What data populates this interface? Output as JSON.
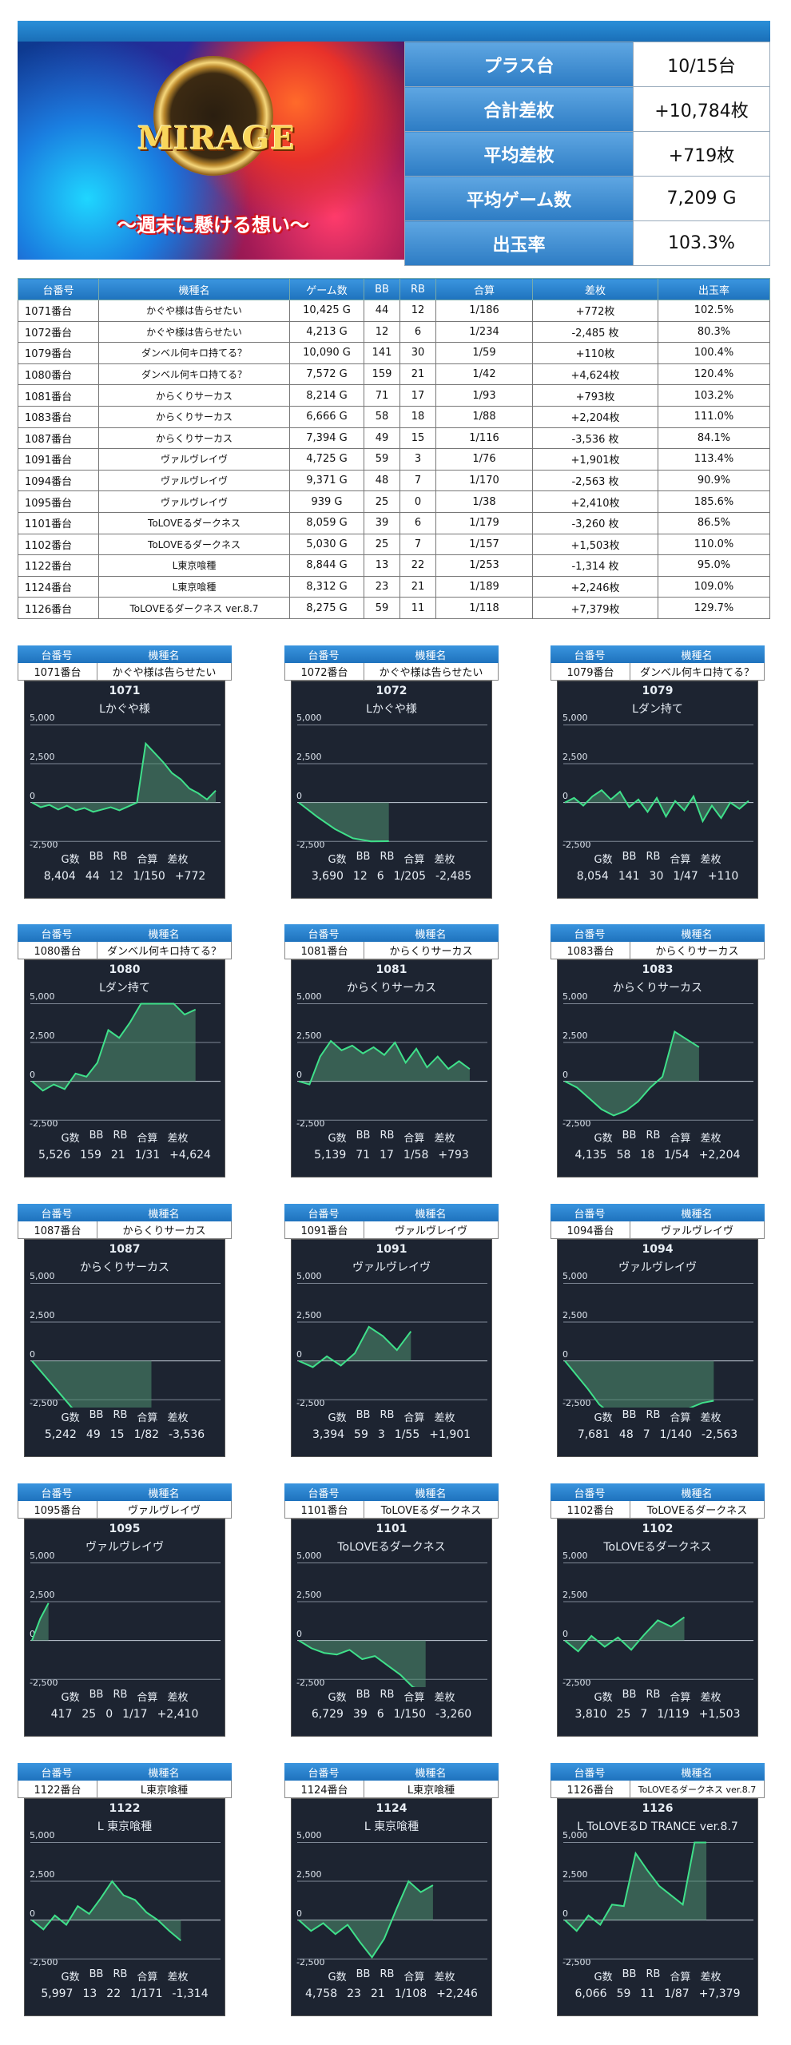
{
  "banner": {
    "logo": "MIRAGE",
    "tagline": "〜週末に懸ける想い〜"
  },
  "summary": [
    {
      "label": "プラス台",
      "value": "10/15台"
    },
    {
      "label": "合計差枚",
      "value": "+10,784枚"
    },
    {
      "label": "平均差枚",
      "value": "+719枚"
    },
    {
      "label": "平均ゲーム数",
      "value": "7,209 G"
    },
    {
      "label": "出玉率",
      "value": "103.3%"
    }
  ],
  "table": {
    "headers": [
      "台番号",
      "機種名",
      "ゲーム数",
      "BB",
      "RB",
      "合算",
      "差枚",
      "出玉率"
    ],
    "rows": [
      [
        "1071番台",
        "かぐや様は告らせたい",
        "10,425 G",
        "44",
        "12",
        "1/186",
        "+772枚",
        "102.5%"
      ],
      [
        "1072番台",
        "かぐや様は告らせたい",
        "4,213 G",
        "12",
        "6",
        "1/234",
        "-2,485 枚",
        "80.3%"
      ],
      [
        "1079番台",
        "ダンベル何キロ持てる？",
        "10,090 G",
        "141",
        "30",
        "1/59",
        "+110枚",
        "100.4%"
      ],
      [
        "1080番台",
        "ダンベル何キロ持てる？",
        "7,572 G",
        "159",
        "21",
        "1/42",
        "+4,624枚",
        "120.4%"
      ],
      [
        "1081番台",
        "からくりサーカス",
        "8,214 G",
        "71",
        "17",
        "1/93",
        "+793枚",
        "103.2%"
      ],
      [
        "1083番台",
        "からくりサーカス",
        "6,666 G",
        "58",
        "18",
        "1/88",
        "+2,204枚",
        "111.0%"
      ],
      [
        "1087番台",
        "からくりサーカス",
        "7,394 G",
        "49",
        "15",
        "1/116",
        "-3,536 枚",
        "84.1%"
      ],
      [
        "1091番台",
        "ヴァルヴレイヴ",
        "4,725 G",
        "59",
        "3",
        "1/76",
        "+1,901枚",
        "113.4%"
      ],
      [
        "1094番台",
        "ヴァルヴレイヴ",
        "9,371 G",
        "48",
        "7",
        "1/170",
        "-2,563 枚",
        "90.9%"
      ],
      [
        "1095番台",
        "ヴァルヴレイヴ",
        "939 G",
        "25",
        "0",
        "1/38",
        "+2,410枚",
        "185.6%"
      ],
      [
        "1101番台",
        "ToLOVEるダークネス",
        "8,059 G",
        "39",
        "6",
        "1/179",
        "-3,260 枚",
        "86.5%"
      ],
      [
        "1102番台",
        "ToLOVEるダークネス",
        "5,030 G",
        "25",
        "7",
        "1/157",
        "+1,503枚",
        "110.0%"
      ],
      [
        "1122番台",
        "L東京喰種",
        "8,844 G",
        "13",
        "22",
        "1/253",
        "-1,314 枚",
        "95.0%"
      ],
      [
        "1124番台",
        "L東京喰種",
        "8,312 G",
        "23",
        "21",
        "1/189",
        "+2,246枚",
        "109.0%"
      ],
      [
        "1126番台",
        "ToLOVEるダークネス ver.8.7",
        "8,275 G",
        "59",
        "11",
        "1/118",
        "+7,379枚",
        "129.7%"
      ]
    ]
  },
  "card_labels": {
    "no": "台番号",
    "name": "機種名",
    "g": "G数",
    "bb": "BB",
    "rb": "RB",
    "total": "合算",
    "diff": "差枚",
    "y5000": "5,000",
    "y2500": "2,500",
    "y0": "0",
    "ym2500": "-2,500"
  },
  "cards": [
    {
      "no": "1071番台",
      "name": "かぐや様は告らせたい",
      "gno": "1071",
      "gname": "Lかぐや様",
      "g": "8,404",
      "bb": "44",
      "rb": "12",
      "total": "1/150",
      "diff": "+772",
      "pts": [
        0,
        -300,
        -150,
        -450,
        -200,
        -500,
        -350,
        -600,
        -450,
        -300,
        -500,
        -250,
        0,
        3800,
        3200,
        2600,
        1900,
        1500,
        900,
        600,
        200,
        772
      ]
    },
    {
      "no": "1072番台",
      "name": "かぐや様は告らせたい",
      "gno": "1072",
      "gname": "Lかぐや様",
      "g": "3,690",
      "bb": "12",
      "rb": "6",
      "total": "1/205",
      "diff": "-2,485",
      "pts": [
        0,
        -900,
        -1700,
        -2300,
        -2500,
        -2485
      ]
    },
    {
      "no": "1079番台",
      "name": "ダンベル何キロ持てる？",
      "gno": "1079",
      "gname": "Lダン持て",
      "g": "8,054",
      "bb": "141",
      "rb": "30",
      "total": "1/47",
      "diff": "+110",
      "pts": [
        0,
        300,
        -200,
        400,
        800,
        200,
        700,
        -300,
        200,
        -600,
        300,
        -900,
        100,
        -500,
        400,
        -1200,
        -200,
        -1000,
        0,
        -400,
        110
      ]
    },
    {
      "no": "1080番台",
      "name": "ダンベル何キロ持てる？",
      "gno": "1080",
      "gname": "Lダン持て",
      "g": "5,526",
      "bb": "159",
      "rb": "21",
      "total": "1/31",
      "diff": "+4,624",
      "pts": [
        0,
        -600,
        -200,
        -500,
        500,
        300,
        1200,
        3300,
        2800,
        3800,
        5000,
        5000,
        5000,
        5000,
        4300,
        4624
      ]
    },
    {
      "no": "1081番台",
      "name": "からくりサーカス",
      "gno": "1081",
      "gname": "からくりサーカス",
      "g": "5,139",
      "bb": "71",
      "rb": "17",
      "total": "1/58",
      "diff": "+793",
      "pts": [
        0,
        -200,
        1600,
        2600,
        2000,
        2300,
        1800,
        2200,
        1700,
        2500,
        1200,
        2100,
        900,
        1600,
        800,
        1300,
        793
      ]
    },
    {
      "no": "1083番台",
      "name": "からくりサーカス",
      "gno": "1083",
      "gname": "からくりサーカス",
      "g": "4,135",
      "bb": "58",
      "rb": "18",
      "total": "1/54",
      "diff": "+2,204",
      "pts": [
        0,
        -400,
        -1100,
        -1800,
        -2200,
        -1900,
        -1300,
        -400,
        300,
        3200,
        2700,
        2204
      ]
    },
    {
      "no": "1087番台",
      "name": "からくりサーカス",
      "gno": "1087",
      "gname": "からくりサーカス",
      "g": "5,242",
      "bb": "49",
      "rb": "15",
      "total": "1/82",
      "diff": "-3,536",
      "pts": [
        0,
        -1000,
        -2000,
        -3000,
        -3536,
        -3536,
        -3536,
        -3536,
        -3536,
        -3536
      ]
    },
    {
      "no": "1091番台",
      "name": "ヴァルヴレイヴ",
      "gno": "1091",
      "gname": "ヴァルヴレイヴ",
      "g": "3,394",
      "bb": "59",
      "rb": "3",
      "total": "1/55",
      "diff": "+1,901",
      "pts": [
        0,
        -400,
        300,
        -300,
        500,
        2200,
        1600,
        700,
        1901
      ]
    },
    {
      "no": "1094番台",
      "name": "ヴァルヴレイヴ",
      "gno": "1094",
      "gname": "ヴァルヴレイヴ",
      "g": "7,681",
      "bb": "48",
      "rb": "7",
      "total": "1/140",
      "diff": "-2,563",
      "pts": [
        0,
        -900,
        -1800,
        -2800,
        -3400,
        -3400,
        -3200,
        -3500,
        -3600,
        -3400,
        -3300,
        -3000,
        -2700,
        -2563
      ]
    },
    {
      "no": "1095番台",
      "name": "ヴァルヴレイヴ",
      "gno": "1095",
      "gname": "ヴァルヴレイヴ",
      "g": "417",
      "bb": "25",
      "rb": "0",
      "total": "1/17",
      "diff": "+2,410",
      "pts": [
        0,
        1400,
        2410
      ]
    },
    {
      "no": "1101番台",
      "name": "ToLOVEるダークネス",
      "gno": "1101",
      "gname": "ToLOVEるダークネス",
      "g": "6,729",
      "bb": "39",
      "rb": "6",
      "total": "1/150",
      "diff": "-3,260",
      "pts": [
        0,
        -500,
        -800,
        -900,
        -600,
        -1200,
        -1000,
        -1600,
        -2200,
        -3000,
        -3260
      ]
    },
    {
      "no": "1102番台",
      "name": "ToLOVEるダークネス",
      "gno": "1102",
      "gname": "ToLOVEるダークネス",
      "g": "3,810",
      "bb": "25",
      "rb": "7",
      "total": "1/119",
      "diff": "+1,503",
      "pts": [
        0,
        -700,
        300,
        -400,
        200,
        -600,
        400,
        1300,
        900,
        1503
      ]
    },
    {
      "no": "1122番台",
      "name": "L東京喰種",
      "gno": "1122",
      "gname": "L 東京喰種",
      "g": "5,997",
      "bb": "13",
      "rb": "22",
      "total": "1/171",
      "diff": "-1,314",
      "pts": [
        0,
        -600,
        300,
        -300,
        900,
        400,
        1400,
        2500,
        1600,
        1300,
        500,
        0,
        -700,
        -1314
      ]
    },
    {
      "no": "1124番台",
      "name": "L東京喰種",
      "gno": "1124",
      "gname": "L 東京喰種",
      "g": "4,758",
      "bb": "23",
      "rb": "21",
      "total": "1/108",
      "diff": "+2,246",
      "pts": [
        0,
        -700,
        -200,
        -900,
        -300,
        -1400,
        -2400,
        -1200,
        700,
        2500,
        1800,
        2246
      ]
    },
    {
      "no": "1126番台",
      "name": "ToLOVEるダークネス ver.8.7",
      "gno": "1126",
      "gname": "L ToLOVEるD TRANCE ver.8.7",
      "g": "6,066",
      "bb": "59",
      "rb": "11",
      "total": "1/87",
      "diff": "+7,379",
      "pts": [
        0,
        -700,
        300,
        -300,
        1000,
        900,
        4300,
        3200,
        2200,
        1600,
        1000,
        5000,
        5000
      ]
    }
  ]
}
